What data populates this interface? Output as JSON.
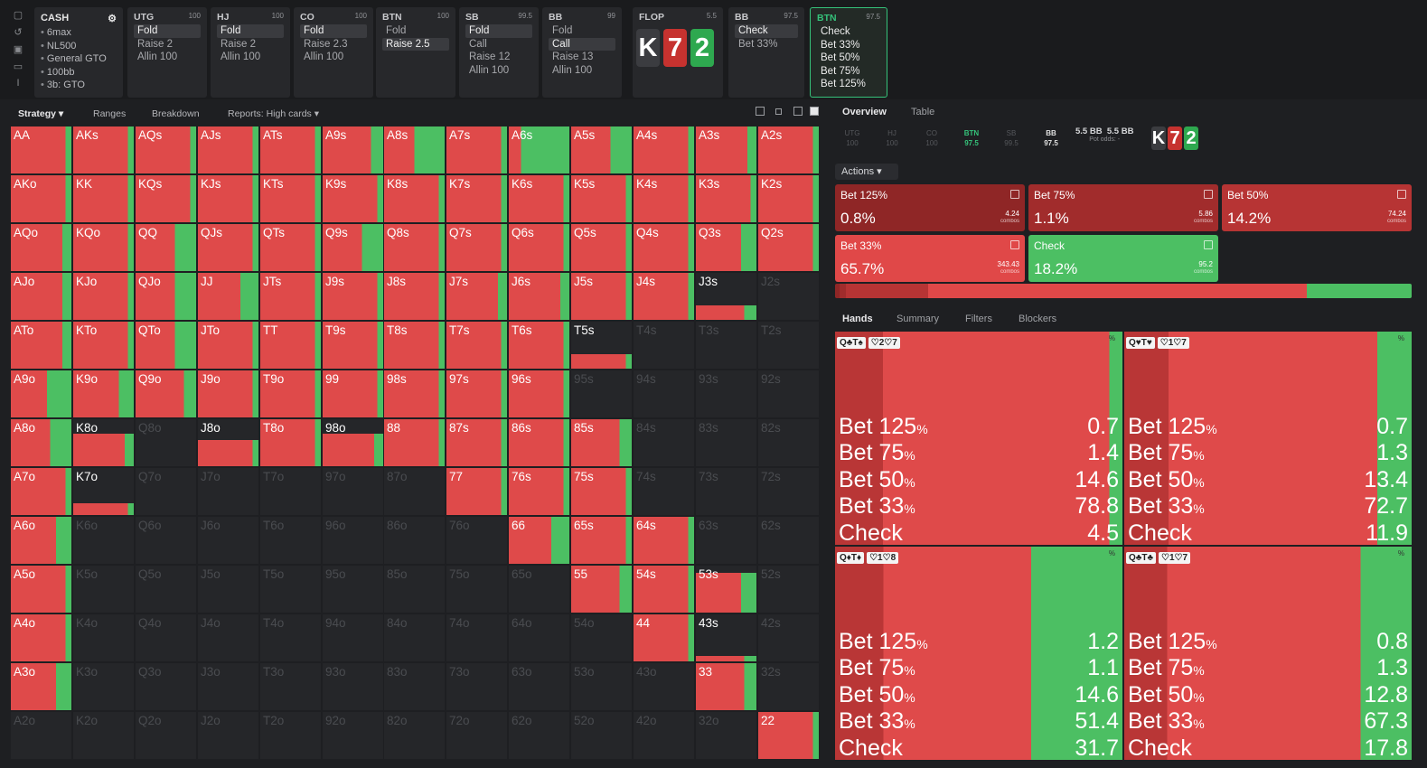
{
  "top": {
    "cash": {
      "title": "CASH",
      "items": [
        "6max",
        "NL500",
        "General GTO",
        "100bb",
        "3b: GTO"
      ]
    },
    "positions": [
      {
        "name": "UTG",
        "stack": "100",
        "actions": [
          {
            "label": "Fold",
            "selected": true
          },
          {
            "label": "Raise 2"
          },
          {
            "label": "Allin 100"
          }
        ]
      },
      {
        "name": "HJ",
        "stack": "100",
        "actions": [
          {
            "label": "Fold",
            "selected": true
          },
          {
            "label": "Raise 2"
          },
          {
            "label": "Allin 100"
          }
        ]
      },
      {
        "name": "CO",
        "stack": "100",
        "actions": [
          {
            "label": "Fold",
            "selected": true
          },
          {
            "label": "Raise 2.3"
          },
          {
            "label": "Allin 100"
          }
        ]
      },
      {
        "name": "BTN",
        "stack": "100",
        "actions": [
          {
            "label": "Fold"
          },
          {
            "label": "Raise 2.5",
            "selected": true
          }
        ]
      },
      {
        "name": "SB",
        "stack": "99.5",
        "actions": [
          {
            "label": "Fold",
            "selected": true
          },
          {
            "label": "Call"
          },
          {
            "label": "Raise 12"
          },
          {
            "label": "Allin 100"
          }
        ]
      },
      {
        "name": "BB",
        "stack": "99",
        "actions": [
          {
            "label": "Fold"
          },
          {
            "label": "Call",
            "selected": true
          },
          {
            "label": "Raise 13"
          },
          {
            "label": "Allin 100"
          }
        ]
      }
    ],
    "flop": {
      "title": "FLOP",
      "pot": "5.5",
      "cards": [
        {
          "rank": "K",
          "suit": "s"
        },
        {
          "rank": "7",
          "suit": "h"
        },
        {
          "rank": "2",
          "suit": "c"
        }
      ]
    },
    "bb_post": {
      "name": "BB",
      "stack": "97.5",
      "actions": [
        {
          "label": "Check",
          "selected": true
        },
        {
          "label": "Bet 33%"
        }
      ]
    },
    "btn_post": {
      "name": "BTN",
      "stack": "97.5",
      "actions": [
        {
          "label": "Check"
        },
        {
          "label": "Bet 33%"
        },
        {
          "label": "Bet 50%"
        },
        {
          "label": "Bet 75%"
        },
        {
          "label": "Bet 125%"
        }
      ]
    }
  },
  "toolbar": {
    "strategy": "Strategy ▾",
    "ranges": "Ranges",
    "breakdown": "Breakdown",
    "reports": "Reports: High cards ▾"
  },
  "colors": {
    "bet": "#df4a4a",
    "bet_dark": "#b93636",
    "check": "#4cbf63",
    "empty": "#252629"
  },
  "grid": [
    [
      "AA",
      "AKs",
      "AQs",
      "AJs",
      "ATs",
      "A9s",
      "A8s",
      "A7s",
      "A6s",
      "A5s",
      "A4s",
      "A3s",
      "A2s"
    ],
    [
      "AKo",
      "KK",
      "KQs",
      "KJs",
      "KTs",
      "K9s",
      "K8s",
      "K7s",
      "K6s",
      "K5s",
      "K4s",
      "K3s",
      "K2s"
    ],
    [
      "AQo",
      "KQo",
      "QQ",
      "QJs",
      "QTs",
      "Q9s",
      "Q8s",
      "Q7s",
      "Q6s",
      "Q5s",
      "Q4s",
      "Q3s",
      "Q2s"
    ],
    [
      "AJo",
      "KJo",
      "QJo",
      "JJ",
      "JTs",
      "J9s",
      "J8s",
      "J7s",
      "J6s",
      "J5s",
      "J4s",
      "J3s",
      "J2s"
    ],
    [
      "ATo",
      "KTo",
      "QTo",
      "JTo",
      "TT",
      "T9s",
      "T8s",
      "T7s",
      "T6s",
      "T5s",
      "T4s",
      "T3s",
      "T2s"
    ],
    [
      "A9o",
      "K9o",
      "Q9o",
      "J9o",
      "T9o",
      "99",
      "98s",
      "97s",
      "96s",
      "95s",
      "94s",
      "93s",
      "92s"
    ],
    [
      "A8o",
      "K8o",
      "Q8o",
      "J8o",
      "T8o",
      "98o",
      "88",
      "87s",
      "86s",
      "85s",
      "84s",
      "83s",
      "82s"
    ],
    [
      "A7o",
      "K7o",
      "Q7o",
      "J7o",
      "T7o",
      "97o",
      "87o",
      "77",
      "76s",
      "75s",
      "74s",
      "73s",
      "72s"
    ],
    [
      "A6o",
      "K6o",
      "Q6o",
      "J6o",
      "T6o",
      "96o",
      "86o",
      "76o",
      "66",
      "65s",
      "64s",
      "63s",
      "62s"
    ],
    [
      "A5o",
      "K5o",
      "Q5o",
      "J5o",
      "T5o",
      "95o",
      "85o",
      "75o",
      "65o",
      "55",
      "54s",
      "53s",
      "52s"
    ],
    [
      "A4o",
      "K4o",
      "Q4o",
      "J4o",
      "T4o",
      "94o",
      "84o",
      "74o",
      "64o",
      "54o",
      "44",
      "43s",
      "42s"
    ],
    [
      "A3o",
      "K3o",
      "Q3o",
      "J3o",
      "T3o",
      "93o",
      "83o",
      "73o",
      "63o",
      "53o",
      "43o",
      "33",
      "32s"
    ],
    [
      "A2o",
      "K2o",
      "Q2o",
      "J2o",
      "T2o",
      "92o",
      "82o",
      "72o",
      "62o",
      "52o",
      "42o",
      "32o",
      "22"
    ]
  ],
  "grid_freq": [
    [
      1,
      1,
      1,
      1,
      1,
      1,
      1,
      1,
      1,
      1,
      1,
      1,
      1
    ],
    [
      1,
      1,
      1,
      1,
      1,
      1,
      1,
      1,
      1,
      1,
      1,
      1,
      1
    ],
    [
      1,
      1,
      1,
      1,
      1,
      1,
      1,
      1,
      1,
      1,
      1,
      1,
      1
    ],
    [
      1,
      1,
      1,
      1,
      1,
      1,
      1,
      1,
      1,
      1,
      1,
      0.3,
      0
    ],
    [
      1,
      1,
      1,
      1,
      1,
      1,
      1,
      1,
      1,
      0.3,
      0,
      0,
      0
    ],
    [
      1,
      1,
      1,
      1,
      1,
      1,
      1,
      1,
      1,
      0,
      0,
      0,
      0
    ],
    [
      1,
      0.7,
      0,
      0.55,
      1,
      0.7,
      1,
      1,
      1,
      1,
      0,
      0,
      0
    ],
    [
      1,
      0.25,
      0,
      0,
      0,
      0,
      0,
      1,
      1,
      1,
      0,
      0,
      0
    ],
    [
      1,
      0,
      0,
      0,
      0,
      0,
      0,
      0,
      1,
      1,
      1,
      0,
      0
    ],
    [
      1,
      0,
      0,
      0,
      0,
      0,
      0,
      0,
      0,
      1,
      1,
      0.85,
      0
    ],
    [
      1,
      0,
      0,
      0,
      0,
      0,
      0,
      0,
      0,
      0,
      1,
      0.12,
      0
    ],
    [
      1,
      0,
      0,
      0,
      0,
      0,
      0,
      0,
      0,
      0,
      0,
      1,
      0
    ],
    [
      0,
      0,
      0,
      0,
      0,
      0,
      0,
      0,
      0,
      0,
      0,
      0,
      1
    ]
  ],
  "grid_check": [
    [
      0.1,
      0.1,
      0.1,
      0.1,
      0.1,
      0.2,
      0.5,
      0.1,
      0.8,
      0.35,
      0.1,
      0.15,
      0.1
    ],
    [
      0.1,
      0.1,
      0.1,
      0.1,
      0.1,
      0.1,
      0.1,
      0.1,
      0.1,
      0.1,
      0.1,
      0.1,
      0.1
    ],
    [
      0.15,
      0.1,
      0.35,
      0.1,
      0.1,
      0.35,
      0.1,
      0.1,
      0.1,
      0.1,
      0.1,
      0.25,
      0.1
    ],
    [
      0.15,
      0.1,
      0.35,
      0.3,
      0.1,
      0.1,
      0.1,
      0.15,
      0.15,
      0.1,
      0.1,
      0.2,
      0
    ],
    [
      0.15,
      0.1,
      0.35,
      0.1,
      0.1,
      0.1,
      0.1,
      0.1,
      0.1,
      0.1,
      0,
      0,
      0
    ],
    [
      0.4,
      0.25,
      0.2,
      0.1,
      0.1,
      0.1,
      0.1,
      0.1,
      0.1,
      0,
      0,
      0,
      0
    ],
    [
      0.35,
      0.15,
      0,
      0.1,
      0.1,
      0.15,
      0.1,
      0.1,
      0.1,
      0.2,
      0,
      0,
      0
    ],
    [
      0.1,
      0.1,
      0,
      0,
      0,
      0,
      0,
      0.1,
      0.1,
      0.1,
      0,
      0,
      0
    ],
    [
      0.25,
      0,
      0,
      0,
      0,
      0,
      0,
      0,
      0.3,
      0.1,
      0.1,
      0,
      0
    ],
    [
      0.1,
      0,
      0,
      0,
      0,
      0,
      0,
      0,
      0,
      0.2,
      0.1,
      0.25,
      0
    ],
    [
      0.1,
      0,
      0,
      0,
      0,
      0,
      0,
      0,
      0,
      0,
      0.1,
      0.2,
      0
    ],
    [
      0.25,
      0,
      0,
      0,
      0,
      0,
      0,
      0,
      0,
      0,
      0,
      0.2,
      0
    ],
    [
      0,
      0,
      0,
      0,
      0,
      0,
      0,
      0,
      0,
      0,
      0,
      0,
      0.1
    ]
  ],
  "right": {
    "tabs": {
      "overview": "Overview",
      "table": "Table"
    },
    "seats": [
      {
        "name": "UTG",
        "stack": "100"
      },
      {
        "name": "HJ",
        "stack": "100"
      },
      {
        "name": "CO",
        "stack": "100"
      },
      {
        "name": "BTN",
        "stack": "97.5",
        "state": "on"
      },
      {
        "name": "SB",
        "stack": "99.5"
      },
      {
        "name": "BB",
        "stack": "97.5",
        "state": "bb"
      }
    ],
    "pot": {
      "a": "5.5 BB",
      "b": "5.5 BB",
      "sub": "Pot odds: -"
    },
    "board": [
      {
        "rank": "K",
        "suit": "s"
      },
      {
        "rank": "7",
        "suit": "h"
      },
      {
        "rank": "2",
        "suit": "c"
      }
    ],
    "actions_label": "Actions ▾",
    "actions": [
      {
        "name": "Bet 125%",
        "pct": "0.8%",
        "combos": "4.24",
        "color": "#8f2626"
      },
      {
        "name": "Bet 75%",
        "pct": "1.1%",
        "combos": "5.86",
        "color": "#a12c2c"
      },
      {
        "name": "Bet 50%",
        "pct": "14.2%",
        "combos": "74.24",
        "color": "#b73434"
      },
      {
        "name": "Bet 33%",
        "pct": "65.7%",
        "combos": "343.43",
        "color": "#e04848"
      },
      {
        "name": "Check",
        "pct": "18.2%",
        "combos": "95.2",
        "color": "#4cbf63"
      }
    ],
    "combos_word": "combos",
    "strategy_bar": [
      {
        "share": 0.008,
        "color": "#8f2626"
      },
      {
        "share": 0.011,
        "color": "#a12c2c"
      },
      {
        "share": 0.142,
        "color": "#b73434"
      },
      {
        "share": 0.657,
        "color": "#e04848"
      },
      {
        "share": 0.182,
        "color": "#4cbf63"
      }
    ],
    "hand_tabs": {
      "hands": "Hands",
      "summary": "Summary",
      "filters": "Filters",
      "blockers": "Blockers"
    },
    "hands": [
      {
        "hand": "Q♣T♠",
        "tag": "♡2♡7",
        "pct_sign": "%",
        "bet125": "0.7",
        "bet75": "1.4",
        "bet50": "14.6",
        "bet33": "78.8",
        "check": "4.5"
      },
      {
        "hand": "Q♥T♥",
        "tag": "♡1♡7",
        "pct_sign": "%",
        "bet125": "0.7",
        "bet75": "1.3",
        "bet50": "13.4",
        "bet33": "72.7",
        "check": "11.9"
      },
      {
        "hand": "Q♦T♦",
        "tag": "♡1♡8",
        "pct_sign": "%",
        "bet125": "1.2",
        "bet75": "1.1",
        "bet50": "14.6",
        "bet33": "51.4",
        "check": "31.7"
      },
      {
        "hand": "Q♣T♣",
        "tag": "♡1♡7",
        "pct_sign": "%",
        "bet125": "0.8",
        "bet75": "1.3",
        "bet50": "12.8",
        "bet33": "67.3",
        "check": "17.8"
      }
    ],
    "row_labels": {
      "bet125": "Bet 125",
      "bet75": "Bet 75",
      "bet50": "Bet 50",
      "bet33": "Bet 33",
      "check": "Check",
      "pct": "%"
    }
  }
}
